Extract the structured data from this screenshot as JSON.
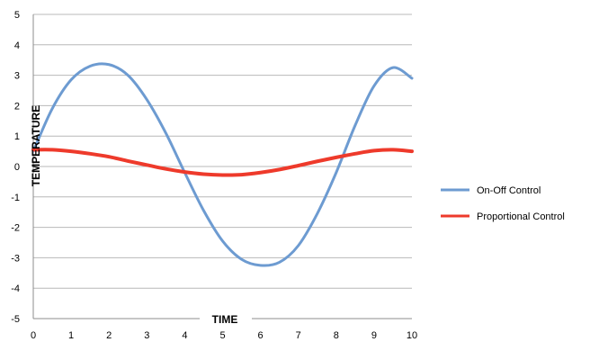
{
  "chart_data": {
    "type": "line",
    "xlabel": "TIME",
    "ylabel": "TEMPERATURE",
    "xlim": [
      0,
      10
    ],
    "ylim": [
      -5,
      5
    ],
    "x_ticks": [
      "0",
      "1",
      "2",
      "3",
      "4",
      "5",
      "6",
      "7",
      "8",
      "9",
      "10"
    ],
    "y_ticks": [
      "5",
      "4",
      "3",
      "2",
      "1",
      "0",
      "-1",
      "-2",
      "-3",
      "-4",
      "-5"
    ],
    "grid": "horizontal",
    "legend_position": "right",
    "series": [
      {
        "name": "On-Off Control",
        "color": "#6d9bd1",
        "x": [
          0,
          0.5,
          1,
          1.5,
          2,
          2.5,
          3,
          3.5,
          4,
          4.5,
          5,
          5.5,
          6,
          6.5,
          7,
          7.5,
          8,
          8.5,
          9,
          9.5,
          10
        ],
        "y": [
          0.5,
          1.9,
          2.85,
          3.3,
          3.35,
          3.0,
          2.2,
          1.1,
          -0.2,
          -1.45,
          -2.45,
          -3.05,
          -3.25,
          -3.15,
          -2.6,
          -1.55,
          -0.2,
          1.35,
          2.65,
          3.25,
          2.9
        ]
      },
      {
        "name": "Proportional Control",
        "color": "#ee3a2b",
        "x": [
          0,
          0.5,
          1,
          1.5,
          2,
          2.5,
          3,
          3.5,
          4,
          4.5,
          5,
          5.5,
          6,
          6.5,
          7,
          7.5,
          8,
          8.5,
          9,
          9.5,
          10
        ],
        "y": [
          0.55,
          0.55,
          0.5,
          0.42,
          0.32,
          0.18,
          0.05,
          -0.08,
          -0.18,
          -0.25,
          -0.28,
          -0.27,
          -0.2,
          -0.1,
          0.03,
          0.17,
          0.3,
          0.42,
          0.52,
          0.55,
          0.5
        ]
      }
    ]
  }
}
